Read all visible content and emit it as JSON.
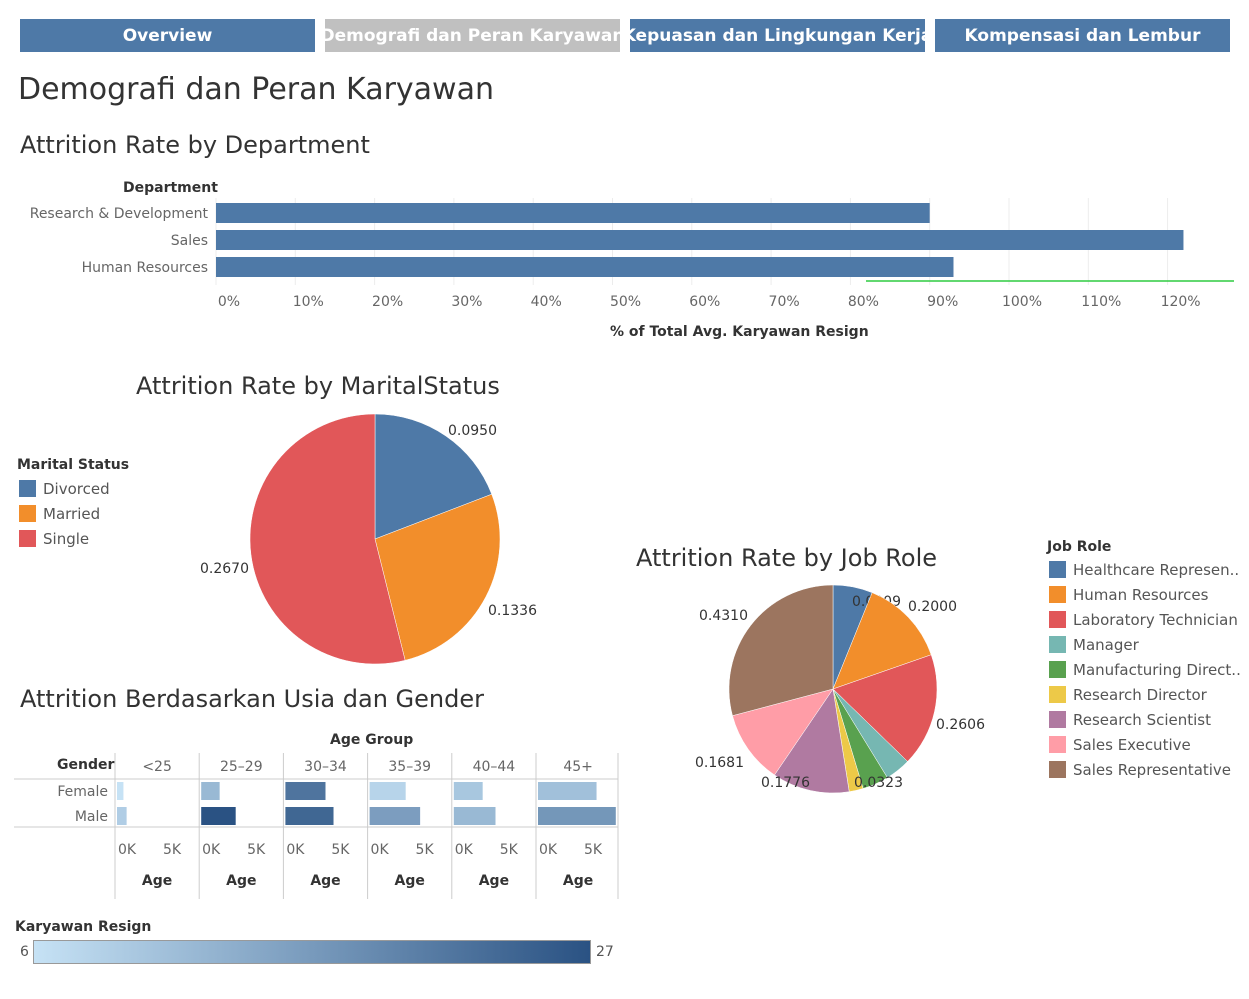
{
  "tabs": [
    {
      "label": "Overview",
      "active": false
    },
    {
      "label": "Demografi dan Peran Karyawan",
      "active": true
    },
    {
      "label": "Kepuasan dan Lingkungan Kerja",
      "active": false
    },
    {
      "label": "Kompensasi dan Lembur",
      "active": false
    }
  ],
  "page_title": "Demografi dan Peran Karyawan",
  "colors": {
    "tab_bg": "#4e79a7",
    "tab_active_bg": "#c0c0c0",
    "bar": "#4e79a7",
    "reference_line": "#2ecc40",
    "gradient_low": "#c6e2f5",
    "gradient_high": "#2a5283"
  },
  "chart_data": [
    {
      "type": "bar",
      "orientation": "horizontal",
      "title": "Attrition Rate by Department",
      "row_header": "Department",
      "categories": [
        "Research & Development",
        "Sales",
        "Human Resources"
      ],
      "values": [
        90,
        122,
        93
      ],
      "xlabel": "% of Total Avg. Karyawan Resign",
      "xticks": [
        "0%",
        "10%",
        "20%",
        "30%",
        "40%",
        "50%",
        "60%",
        "70%",
        "80%",
        "90%",
        "100%",
        "110%",
        "120%"
      ],
      "xlim": [
        0,
        128
      ],
      "grid": true
    },
    {
      "type": "pie",
      "title": "Attrition Rate by MaritalStatus",
      "legend_title": "Marital Status",
      "legend_position": "left",
      "slices": [
        {
          "name": "Divorced",
          "value": 0.095,
          "label": "0.0950",
          "color": "#4e79a7"
        },
        {
          "name": "Married",
          "value": 0.1336,
          "label": "0.1336",
          "color": "#f28e2b"
        },
        {
          "name": "Single",
          "value": 0.267,
          "label": "0.2670",
          "color": "#e15759"
        }
      ]
    },
    {
      "type": "pie",
      "title": "Attrition Rate by Job Role",
      "legend_title": "Job Role",
      "legend_position": "right",
      "slices": [
        {
          "name": "Healthcare Represen..",
          "value": 0.0909,
          "label": "0.0909",
          "color": "#4e79a7"
        },
        {
          "name": "Human Resources",
          "value": 0.2,
          "label": "0.2000",
          "color": "#f28e2b"
        },
        {
          "name": "Laboratory Technician",
          "value": 0.2606,
          "label": "0.2606",
          "color": "#e15759"
        },
        {
          "name": "Manager",
          "value": 0.0588,
          "label": "",
          "color": "#76b7b2"
        },
        {
          "name": "Manufacturing Direct..",
          "value": 0.0603,
          "label": "",
          "color": "#59a14f"
        },
        {
          "name": "Research Director",
          "value": 0.0323,
          "label": "0.0323",
          "color": "#edc948"
        },
        {
          "name": "Research Scientist",
          "value": 0.1776,
          "label": "0.1776",
          "color": "#b07aa1"
        },
        {
          "name": "Sales Executive",
          "value": 0.1681,
          "label": "0.1681",
          "color": "#ff9da7"
        },
        {
          "name": "Sales Representative",
          "value": 0.431,
          "label": "0.4310",
          "color": "#9c755f"
        }
      ]
    },
    {
      "type": "bar",
      "orientation": "horizontal",
      "title": "Attrition Berdasarkan Usia dan Gender",
      "column_header": "Age Group",
      "row_header": "Gender",
      "groups": [
        "<25",
        "25–29",
        "30–34",
        "35–39",
        "40–44",
        "45+"
      ],
      "rows": [
        "Female",
        "Male"
      ],
      "series": [
        {
          "name": "Female",
          "values": [
            800,
            2300,
            5000,
            4500,
            3600,
            7300
          ],
          "resign": [
            6,
            12,
            22,
            8,
            10,
            11
          ]
        },
        {
          "name": "Male",
          "values": [
            1200,
            4300,
            6000,
            6300,
            5200,
            9700
          ],
          "resign": [
            9,
            27,
            24,
            16,
            12,
            17
          ]
        }
      ],
      "xticks": [
        "0K",
        "5K"
      ],
      "xlim": [
        0,
        10000
      ],
      "xlabel": "Age",
      "color_legend": {
        "title": "Karyawan Resign",
        "min": "6",
        "max": "27"
      }
    }
  ]
}
